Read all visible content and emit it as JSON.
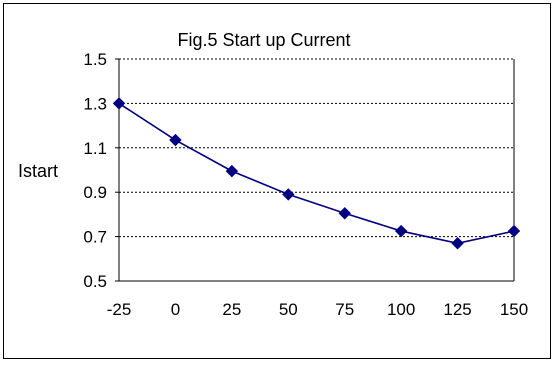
{
  "chart_data": {
    "type": "line",
    "title": "Fig.5 Start up Current",
    "xlabel": "",
    "ylabel": "Istart",
    "x": [
      "-25",
      "0",
      "25",
      "50",
      "75",
      "100",
      "125",
      "150"
    ],
    "series": [
      {
        "values": [
          1.3,
          1.135,
          0.995,
          0.89,
          0.805,
          0.725,
          0.67,
          0.725
        ],
        "color": "#000080",
        "marker": "diamond"
      }
    ],
    "ylim": [
      0.5,
      1.5
    ],
    "yticks": [
      "0.5",
      "0.7",
      "0.9",
      "1.1",
      "1.3",
      "1.5"
    ],
    "grid": "horizontal dashed",
    "legend": "none"
  }
}
